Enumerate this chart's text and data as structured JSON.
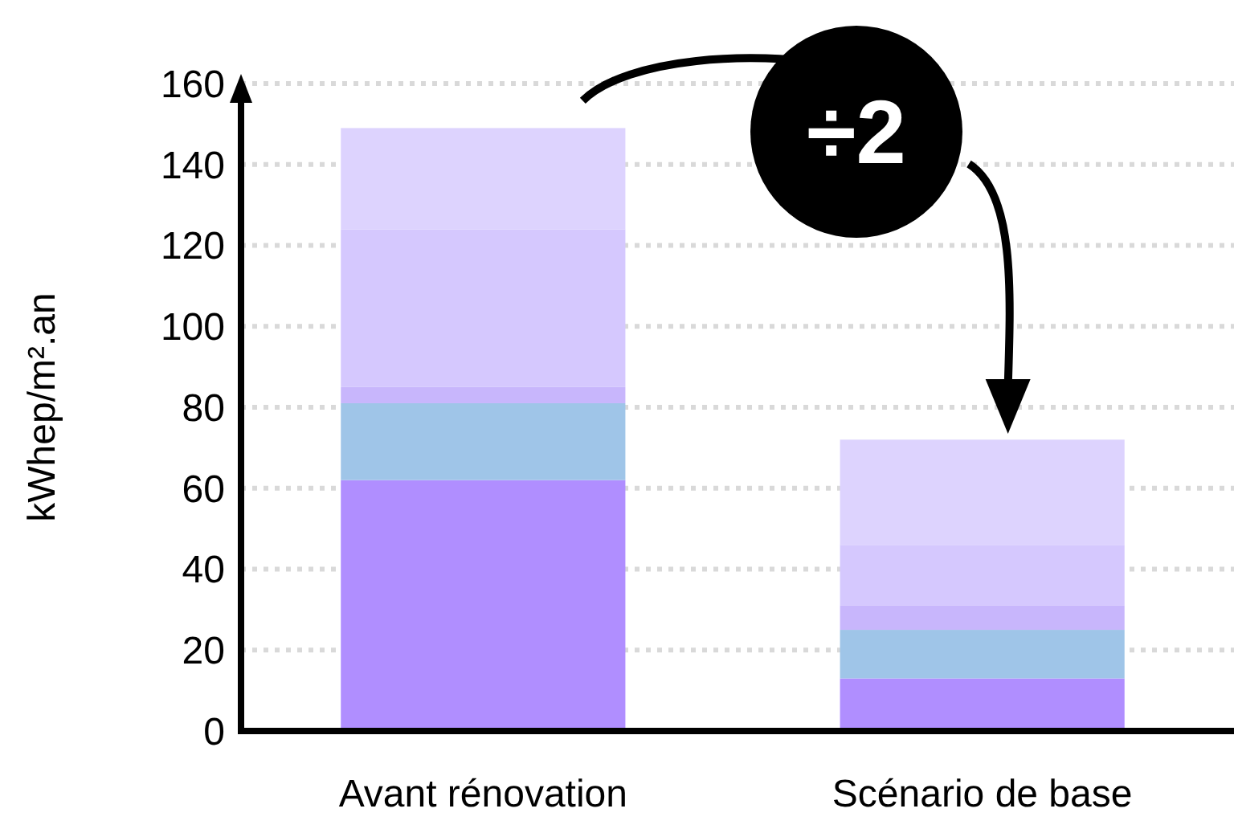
{
  "chart_data": {
    "type": "bar",
    "stacked": true,
    "categories": [
      "Avant rénovation",
      "Scénario de base"
    ],
    "series": [
      {
        "color": "#b08eff",
        "values": [
          62,
          13
        ]
      },
      {
        "color": "#9fc5e8",
        "values": [
          19,
          12
        ]
      },
      {
        "color": "#c8b6fc",
        "values": [
          4,
          6
        ]
      },
      {
        "color": "#d5c8fe",
        "values": [
          39,
          15
        ]
      },
      {
        "color": "#ddd3fe",
        "values": [
          25,
          26
        ]
      }
    ],
    "ylabel": "kWhep/m².an",
    "ylim": [
      0,
      160
    ],
    "yticks": [
      0,
      20,
      40,
      60,
      80,
      100,
      120,
      140,
      160
    ],
    "grid": "y",
    "annotations": [
      "÷2"
    ]
  }
}
